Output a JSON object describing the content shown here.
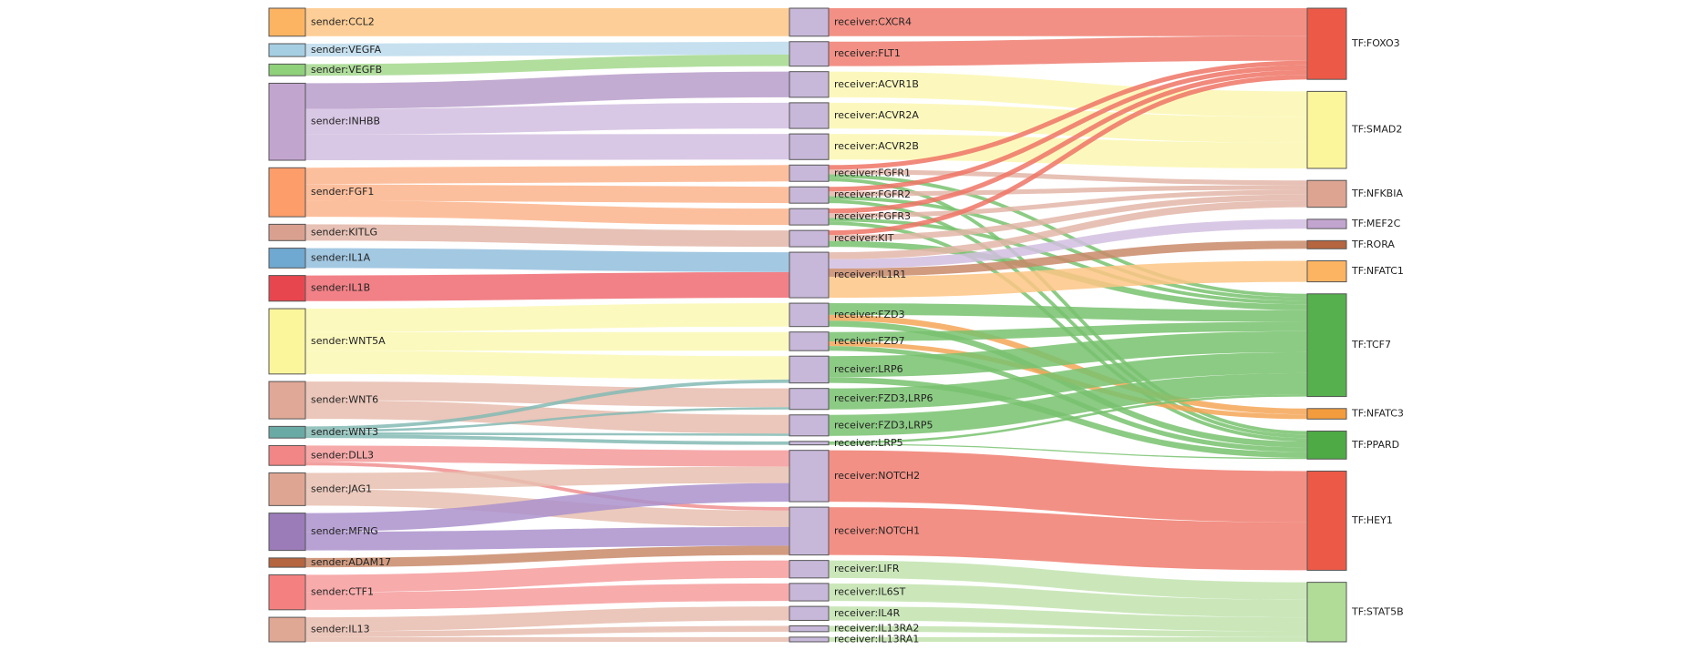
{
  "diagram": {
    "type": "sankey",
    "columns": [
      "sender",
      "receiver",
      "tf"
    ],
    "nodes": [
      {
        "id": "s_ccl2",
        "label": "sender:CCL2",
        "column": 0,
        "color": "#fdb462"
      },
      {
        "id": "s_vegfa",
        "label": "sender:VEGFA",
        "column": 0,
        "color": "#a6cee3"
      },
      {
        "id": "s_vegfb",
        "label": "sender:VEGFB",
        "column": 0,
        "color": "#8fd07a"
      },
      {
        "id": "s_inhbb",
        "label": "sender:INHBB",
        "column": 0,
        "color": "#c2a5cf"
      },
      {
        "id": "s_fgf1",
        "label": "sender:FGF1",
        "column": 0,
        "color": "#fc9d6a"
      },
      {
        "id": "s_kitlg",
        "label": "sender:KITLG",
        "column": 0,
        "color": "#d9a090"
      },
      {
        "id": "s_il1a",
        "label": "sender:IL1A",
        "column": 0,
        "color": "#6fa8d0"
      },
      {
        "id": "s_il1b",
        "label": "sender:IL1B",
        "column": 0,
        "color": "#e8464f"
      },
      {
        "id": "s_wnt5a",
        "label": "sender:WNT5A",
        "column": 0,
        "color": "#fbf59b"
      },
      {
        "id": "s_wnt6",
        "label": "sender:WNT6",
        "column": 0,
        "color": "#e0a896"
      },
      {
        "id": "s_wnt3",
        "label": "sender:WNT3",
        "column": 0,
        "color": "#6aaaa4"
      },
      {
        "id": "s_dll3",
        "label": "sender:DLL3",
        "column": 0,
        "color": "#f28585"
      },
      {
        "id": "s_jag1",
        "label": "sender:JAG1",
        "column": 0,
        "color": "#dea692"
      },
      {
        "id": "s_mfng",
        "label": "sender:MFNG",
        "column": 0,
        "color": "#9b7bb8"
      },
      {
        "id": "s_adam17",
        "label": "sender:ADAM17",
        "column": 0,
        "color": "#b5653f"
      },
      {
        "id": "s_ctf1",
        "label": "sender:CTF1",
        "column": 0,
        "color": "#f48080"
      },
      {
        "id": "s_il13",
        "label": "sender:IL13",
        "column": 0,
        "color": "#dea894"
      },
      {
        "id": "r_cxcr4",
        "label": "receiver:CXCR4",
        "column": 1,
        "color": "#c7b8d9"
      },
      {
        "id": "r_flt1",
        "label": "receiver:FLT1",
        "column": 1,
        "color": "#c7b8d9"
      },
      {
        "id": "r_acvr1b",
        "label": "receiver:ACVR1B",
        "column": 1,
        "color": "#c7b8d9"
      },
      {
        "id": "r_acvr2a",
        "label": "receiver:ACVR2A",
        "column": 1,
        "color": "#c7b8d9"
      },
      {
        "id": "r_acvr2b",
        "label": "receiver:ACVR2B",
        "column": 1,
        "color": "#c7b8d9"
      },
      {
        "id": "r_fgfr1",
        "label": "receiver:FGFR1",
        "column": 1,
        "color": "#c7b8d9"
      },
      {
        "id": "r_fgfr2",
        "label": "receiver:FGFR2",
        "column": 1,
        "color": "#c7b8d9"
      },
      {
        "id": "r_fgfr3",
        "label": "receiver:FGFR3",
        "column": 1,
        "color": "#c7b8d9"
      },
      {
        "id": "r_kit",
        "label": "receiver:KIT",
        "column": 1,
        "color": "#c7b8d9"
      },
      {
        "id": "r_il1r1",
        "label": "receiver:IL1R1",
        "column": 1,
        "color": "#c7b8d9"
      },
      {
        "id": "r_fzd3",
        "label": "receiver:FZD3",
        "column": 1,
        "color": "#c7b8d9"
      },
      {
        "id": "r_fzd7",
        "label": "receiver:FZD7",
        "column": 1,
        "color": "#c7b8d9"
      },
      {
        "id": "r_lrp6",
        "label": "receiver:LRP6",
        "column": 1,
        "color": "#c7b8d9"
      },
      {
        "id": "r_fzd3lrp6",
        "label": "receiver:FZD3,LRP6",
        "column": 1,
        "color": "#c7b8d9"
      },
      {
        "id": "r_fzd3lrp5",
        "label": "receiver:FZD3,LRP5",
        "column": 1,
        "color": "#c7b8d9"
      },
      {
        "id": "r_lrp5",
        "label": "receiver:LRP5",
        "column": 1,
        "color": "#c7b8d9"
      },
      {
        "id": "r_notch2",
        "label": "receiver:NOTCH2",
        "column": 1,
        "color": "#c7b8d9"
      },
      {
        "id": "r_notch1",
        "label": "receiver:NOTCH1",
        "column": 1,
        "color": "#c7b8d9"
      },
      {
        "id": "r_lifr",
        "label": "receiver:LIFR",
        "column": 1,
        "color": "#c7b8d9"
      },
      {
        "id": "r_il6st",
        "label": "receiver:IL6ST",
        "column": 1,
        "color": "#c7b8d9"
      },
      {
        "id": "r_il4r",
        "label": "receiver:IL4R",
        "column": 1,
        "color": "#c7b8d9"
      },
      {
        "id": "r_il13ra2",
        "label": "receiver:IL13RA2",
        "column": 1,
        "color": "#c7b8d9"
      },
      {
        "id": "r_il13ra1",
        "label": "receiver:IL13RA1",
        "column": 1,
        "color": "#c7b8d9"
      },
      {
        "id": "t_foxo3",
        "label": "TF:FOXO3",
        "column": 2,
        "color": "#ec5a47"
      },
      {
        "id": "t_smad2",
        "label": "TF:SMAD2",
        "column": 2,
        "color": "#fbf59b"
      },
      {
        "id": "t_nfkbia",
        "label": "TF:NFKBIA",
        "column": 2,
        "color": "#dea492"
      },
      {
        "id": "t_mef2c",
        "label": "TF:MEF2C",
        "column": 2,
        "color": "#c2a5cf"
      },
      {
        "id": "t_rora",
        "label": "TF:RORA",
        "column": 2,
        "color": "#b5653f"
      },
      {
        "id": "t_nfatc1",
        "label": "TF:NFATC1",
        "column": 2,
        "color": "#fdb462"
      },
      {
        "id": "t_tcf7",
        "label": "TF:TCF7",
        "column": 2,
        "color": "#55b04d"
      },
      {
        "id": "t_nfatc3",
        "label": "TF:NFATC3",
        "column": 2,
        "color": "#f39c3d"
      },
      {
        "id": "t_ppard",
        "label": "TF:PPARD",
        "column": 2,
        "color": "#4daa45"
      },
      {
        "id": "t_hey1",
        "label": "TF:HEY1",
        "column": 2,
        "color": "#ec5a47"
      },
      {
        "id": "t_stat5b",
        "label": "TF:STAT5B",
        "column": 2,
        "color": "#b0dc98"
      }
    ],
    "links": [
      {
        "source": "s_ccl2",
        "target": "r_cxcr4",
        "value": 24,
        "color": "#fdc585"
      },
      {
        "source": "s_vegfa",
        "target": "r_flt1",
        "value": 11,
        "color": "#bcdaec"
      },
      {
        "source": "s_vegfb",
        "target": "r_flt1",
        "value": 10,
        "color": "#a3d88c"
      },
      {
        "source": "s_inhbb",
        "target": "r_acvr1b",
        "value": 22,
        "color": "#b89dca"
      },
      {
        "source": "s_inhbb",
        "target": "r_acvr2a",
        "value": 22,
        "color": "#d2bee0"
      },
      {
        "source": "s_inhbb",
        "target": "r_acvr2b",
        "value": 22,
        "color": "#d2bee0"
      },
      {
        "source": "s_fgf1",
        "target": "r_fgfr1",
        "value": 14,
        "color": "#fbb48c"
      },
      {
        "source": "s_fgf1",
        "target": "r_fgfr2",
        "value": 14,
        "color": "#fbb48c"
      },
      {
        "source": "s_fgf1",
        "target": "r_fgfr3",
        "value": 14,
        "color": "#fbb48c"
      },
      {
        "source": "s_kitlg",
        "target": "r_kit",
        "value": 14,
        "color": "#e3b6a8"
      },
      {
        "source": "s_il1a",
        "target": "r_il1r1",
        "value": 17,
        "color": "#93bedd"
      },
      {
        "source": "s_il1b",
        "target": "r_il1r1",
        "value": 22,
        "color": "#f06b72"
      },
      {
        "source": "s_wnt5a",
        "target": "r_fzd3",
        "value": 20,
        "color": "#fcf8b4"
      },
      {
        "source": "s_wnt5a",
        "target": "r_fzd7",
        "value": 16,
        "color": "#fcf8b4"
      },
      {
        "source": "s_wnt5a",
        "target": "r_lrp6",
        "value": 20,
        "color": "#fcf8b4"
      },
      {
        "source": "s_wnt6",
        "target": "r_fzd3lrp6",
        "value": 16,
        "color": "#e8bcae"
      },
      {
        "source": "s_wnt6",
        "target": "r_fzd3lrp5",
        "value": 16,
        "color": "#e8bcae"
      },
      {
        "source": "s_wnt3",
        "target": "r_lrp6",
        "value": 3,
        "color": "#84bab4"
      },
      {
        "source": "s_wnt3",
        "target": "r_fzd3lrp6",
        "value": 2,
        "color": "#84bab4"
      },
      {
        "source": "s_wnt3",
        "target": "r_fzd3lrp5",
        "value": 2,
        "color": "#84bab4"
      },
      {
        "source": "s_wnt3",
        "target": "r_lrp5",
        "value": 3,
        "color": "#84bab4"
      },
      {
        "source": "s_dll3",
        "target": "r_notch2",
        "value": 14,
        "color": "#f59a9a"
      },
      {
        "source": "s_dll3",
        "target": "r_notch1",
        "value": 3,
        "color": "#f08f8f"
      },
      {
        "source": "s_jag1",
        "target": "r_notch2",
        "value": 14,
        "color": "#e8bfb0"
      },
      {
        "source": "s_jag1",
        "target": "r_notch1",
        "value": 14,
        "color": "#e8bfb0"
      },
      {
        "source": "s_mfng",
        "target": "r_notch2",
        "value": 16,
        "color": "#ab92cc"
      },
      {
        "source": "s_mfng",
        "target": "r_notch1",
        "value": 16,
        "color": "#ab92cc"
      },
      {
        "source": "s_adam17",
        "target": "r_notch1",
        "value": 8,
        "color": "#c98a6a"
      },
      {
        "source": "s_ctf1",
        "target": "r_lifr",
        "value": 15,
        "color": "#f69c9c"
      },
      {
        "source": "s_ctf1",
        "target": "r_il6st",
        "value": 15,
        "color": "#f69c9c"
      },
      {
        "source": "s_il13",
        "target": "r_il4r",
        "value": 12,
        "color": "#e8bcae"
      },
      {
        "source": "s_il13",
        "target": "r_il13ra2",
        "value": 5,
        "color": "#e8bcae"
      },
      {
        "source": "s_il13",
        "target": "r_il13ra1",
        "value": 4,
        "color": "#e8bcae"
      },
      {
        "source": "r_cxcr4",
        "target": "t_foxo3",
        "value": 24,
        "color": "#f07c70"
      },
      {
        "source": "r_flt1",
        "target": "t_foxo3",
        "value": 21,
        "color": "#f07c70"
      },
      {
        "source": "r_acvr1b",
        "target": "t_smad2",
        "value": 22,
        "color": "#fcf7b2"
      },
      {
        "source": "r_acvr2a",
        "target": "t_smad2",
        "value": 22,
        "color": "#fcf7b2"
      },
      {
        "source": "r_acvr2b",
        "target": "t_smad2",
        "value": 22,
        "color": "#fcf7b2"
      },
      {
        "source": "r_fgfr1",
        "target": "t_foxo3",
        "value": 4,
        "color": "#ef7466"
      },
      {
        "source": "r_fgfr1",
        "target": "t_nfkbia",
        "value": 4,
        "color": "#e3b6a8"
      },
      {
        "source": "r_fgfr1",
        "target": "t_tcf7",
        "value": 3,
        "color": "#78c26e"
      },
      {
        "source": "r_fgfr1",
        "target": "t_ppard",
        "value": 3,
        "color": "#78c26e"
      },
      {
        "source": "r_fgfr2",
        "target": "t_foxo3",
        "value": 4,
        "color": "#ef7466"
      },
      {
        "source": "r_fgfr2",
        "target": "t_nfkbia",
        "value": 4,
        "color": "#e3b6a8"
      },
      {
        "source": "r_fgfr2",
        "target": "t_tcf7",
        "value": 3,
        "color": "#78c26e"
      },
      {
        "source": "r_fgfr2",
        "target": "t_ppard",
        "value": 3,
        "color": "#78c26e"
      },
      {
        "source": "r_fgfr3",
        "target": "t_foxo3",
        "value": 4,
        "color": "#ef7466"
      },
      {
        "source": "r_fgfr3",
        "target": "t_nfkbia",
        "value": 4,
        "color": "#e3b6a8"
      },
      {
        "source": "r_fgfr3",
        "target": "t_tcf7",
        "value": 3,
        "color": "#78c26e"
      },
      {
        "source": "r_fgfr3",
        "target": "t_ppard",
        "value": 3,
        "color": "#78c26e"
      },
      {
        "source": "r_kit",
        "target": "t_foxo3",
        "value": 4,
        "color": "#ef7466"
      },
      {
        "source": "r_kit",
        "target": "t_nfkbia",
        "value": 5,
        "color": "#e3b6a8"
      },
      {
        "source": "r_kit",
        "target": "t_tcf7",
        "value": 5,
        "color": "#78c26e"
      },
      {
        "source": "r_il1r1",
        "target": "t_nfkbia",
        "value": 6,
        "color": "#e3b6a8"
      },
      {
        "source": "r_il1r1",
        "target": "t_mef2c",
        "value": 8,
        "color": "#d2bee0"
      },
      {
        "source": "r_il1r1",
        "target": "t_rora",
        "value": 7,
        "color": "#c98a6a"
      },
      {
        "source": "r_il1r1",
        "target": "t_nfatc1",
        "value": 18,
        "color": "#fdc585"
      },
      {
        "source": "r_fzd3",
        "target": "t_tcf7",
        "value": 10,
        "color": "#78c26e"
      },
      {
        "source": "r_fzd3",
        "target": "t_nfatc3",
        "value": 5,
        "color": "#f5a657"
      },
      {
        "source": "r_fzd3",
        "target": "t_ppard",
        "value": 5,
        "color": "#78c26e"
      },
      {
        "source": "r_fzd7",
        "target": "t_tcf7",
        "value": 8,
        "color": "#78c26e"
      },
      {
        "source": "r_fzd7",
        "target": "t_nfatc3",
        "value": 4,
        "color": "#f5a657"
      },
      {
        "source": "r_fzd7",
        "target": "t_ppard",
        "value": 4,
        "color": "#78c26e"
      },
      {
        "source": "r_lrp6",
        "target": "t_tcf7",
        "value": 18,
        "color": "#78c26e"
      },
      {
        "source": "r_lrp6",
        "target": "t_ppard",
        "value": 5,
        "color": "#78c26e"
      },
      {
        "source": "r_fzd3lrp6",
        "target": "t_tcf7",
        "value": 18,
        "color": "#78c26e"
      },
      {
        "source": "r_fzd3lrp5",
        "target": "t_tcf7",
        "value": 18,
        "color": "#78c26e"
      },
      {
        "source": "r_lrp5",
        "target": "t_tcf7",
        "value": 2,
        "color": "#78c26e"
      },
      {
        "source": "r_lrp5",
        "target": "t_ppard",
        "value": 1,
        "color": "#78c26e"
      },
      {
        "source": "r_notch2",
        "target": "t_hey1",
        "value": 44,
        "color": "#f07c70"
      },
      {
        "source": "r_notch1",
        "target": "t_hey1",
        "value": 41,
        "color": "#f07c70"
      },
      {
        "source": "r_lifr",
        "target": "t_stat5b",
        "value": 15,
        "color": "#c2e3ae"
      },
      {
        "source": "r_il6st",
        "target": "t_stat5b",
        "value": 15,
        "color": "#c2e3ae"
      },
      {
        "source": "r_il4r",
        "target": "t_stat5b",
        "value": 12,
        "color": "#c2e3ae"
      },
      {
        "source": "r_il13ra2",
        "target": "t_stat5b",
        "value": 5,
        "color": "#c2e3ae"
      },
      {
        "source": "r_il13ra1",
        "target": "t_stat5b",
        "value": 4,
        "color": "#c2e3ae"
      }
    ]
  }
}
